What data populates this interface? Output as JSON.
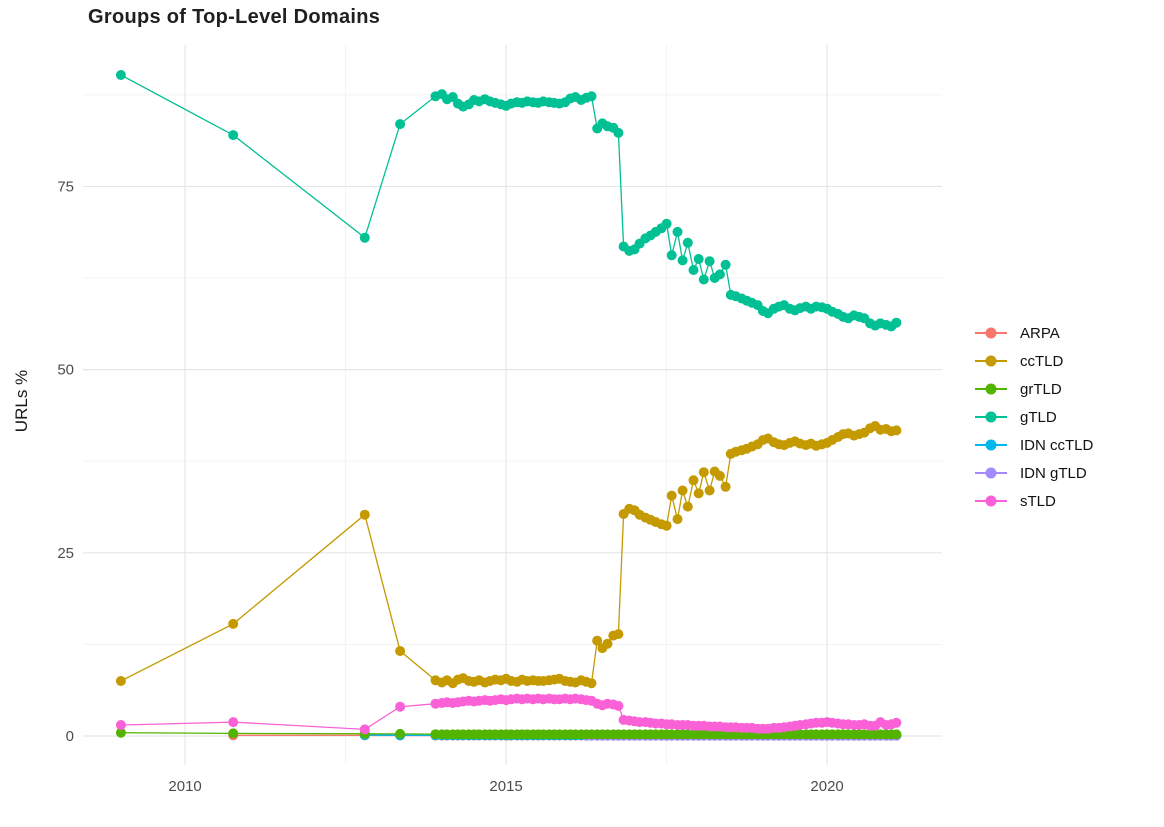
{
  "title": "Groups of Top-Level Domains",
  "axes": {
    "y_label": "URLs %",
    "y_ticks": [
      "0",
      "25",
      "50",
      "75"
    ],
    "y_tick_values": [
      0,
      25,
      50,
      75
    ],
    "y_minor_values": [
      12.5,
      37.5,
      62.5,
      87.5
    ],
    "x_ticks": [
      "2010",
      "2015",
      "2020"
    ],
    "x_tick_values": [
      2010,
      2015,
      2020
    ],
    "x_minor_values": [
      2012.5,
      2017.5
    ],
    "x_range": [
      2008.41,
      2021.79
    ],
    "y_range": [
      -3.96,
      94.3
    ]
  },
  "style": {
    "background": "#ffffff",
    "grid_major": "#e6e6e6",
    "grid_minor": "#f3f3f3",
    "tick_label_color": "#4d4d4d",
    "point_radius": 5,
    "line_width": 1.3
  },
  "legend": {
    "position": "right",
    "items": [
      {
        "label": "ARPA",
        "color": "#F8766D"
      },
      {
        "label": "ccTLD",
        "color": "#C49A00"
      },
      {
        "label": "grTLD",
        "color": "#53B400"
      },
      {
        "label": "gTLD",
        "color": "#00C094"
      },
      {
        "label": "IDN ccTLD",
        "color": "#00B6EB"
      },
      {
        "label": "IDN gTLD",
        "color": "#A58AFF"
      },
      {
        "label": "sTLD",
        "color": "#FB61D7"
      }
    ]
  },
  "chart_data": {
    "type": "line",
    "title": "Groups of Top-Level Domains",
    "xlabel": "",
    "ylabel": "URLs %",
    "ylim": [
      0,
      94
    ],
    "grid": true,
    "legend_position": "right",
    "x_dense": [
      2014,
      2014.08,
      2014.17,
      2014.25,
      2014.33,
      2014.42,
      2014.5,
      2014.58,
      2014.67,
      2014.75,
      2014.83,
      2014.92,
      2015,
      2015.08,
      2015.17,
      2015.25,
      2015.33,
      2015.42,
      2015.5,
      2015.58,
      2015.67,
      2015.75,
      2015.83,
      2015.92,
      2016,
      2016.08,
      2016.17,
      2016.25,
      2016.33,
      2016.42,
      2016.5,
      2016.58,
      2016.67,
      2016.75,
      2016.83,
      2016.92,
      2017,
      2017.08,
      2017.17,
      2017.25,
      2017.33,
      2017.42,
      2017.5,
      2017.58,
      2017.67,
      2017.75,
      2017.83,
      2017.92,
      2018,
      2018.08,
      2018.17,
      2018.25,
      2018.33,
      2018.42,
      2018.5,
      2018.58,
      2018.67,
      2018.75,
      2018.83,
      2018.92,
      2019,
      2019.08,
      2019.17,
      2019.25,
      2019.33,
      2019.42,
      2019.5,
      2019.58,
      2019.67,
      2019.75,
      2019.83,
      2019.92,
      2020,
      2020.08,
      2020.17,
      2020.25,
      2020.33,
      2020.42,
      2020.5,
      2020.58,
      2020.67,
      2020.75,
      2020.83,
      2020.92,
      2021,
      2021.08
    ],
    "series": [
      {
        "name": "ARPA",
        "color": "#F8766D",
        "dense_offset": 0,
        "y_const": 0.05,
        "x_extra": [
          2010.75,
          2012.8,
          2013.35,
          2013.9
        ],
        "y_extra": [
          0.1,
          0.08,
          0.06,
          0.05
        ]
      },
      {
        "name": "IDN ccTLD",
        "color": "#00B6EB",
        "dense_offset": 0,
        "y_const": 0.1,
        "x_extra": [
          2012.8,
          2013.35,
          2013.9
        ],
        "y_extra": [
          0.12,
          0.1,
          0.1
        ]
      },
      {
        "name": "IDN gTLD",
        "color": "#A58AFF",
        "dense_offset": 27,
        "y_const": 0.04,
        "x_extra": [],
        "y_extra": []
      },
      {
        "name": "grTLD",
        "color": "#53B400",
        "dense_offset": 0,
        "y_const": 0.22,
        "x_extra": [
          2009,
          2010.75,
          2012.8,
          2013.35,
          2013.9
        ],
        "y_extra": [
          0.45,
          0.35,
          0.3,
          0.28,
          0.25
        ]
      },
      {
        "name": "ccTLD",
        "color": "#C49A00",
        "dense_offset": 0,
        "x_extra": [
          2009,
          2010.75,
          2012.8,
          2013.35,
          2013.9
        ],
        "y_extra": [
          7.5,
          15.3,
          30.2,
          11.6,
          7.6
        ],
        "y_dense": [
          7.3,
          7.6,
          7.2,
          7.7,
          7.9,
          7.5,
          7.4,
          7.6,
          7.3,
          7.5,
          7.7,
          7.6,
          7.8,
          7.5,
          7.4,
          7.7,
          7.5,
          7.6,
          7.5,
          7.5,
          7.6,
          7.7,
          7.8,
          7.5,
          7.4,
          7.3,
          7.6,
          7.4,
          7.2,
          13.0,
          12.0,
          12.6,
          13.7,
          13.9,
          30.3,
          31.0,
          30.8,
          30.2,
          29.8,
          29.5,
          29.2,
          28.9,
          28.7,
          32.8,
          29.6,
          33.5,
          31.3,
          34.9,
          33.1,
          36.0,
          33.5,
          36.1,
          35.5,
          34.0,
          38.5,
          38.8,
          39.0,
          39.2,
          39.5,
          39.8,
          40.4,
          40.6,
          40.1,
          39.8,
          39.7,
          40.0,
          40.2,
          39.9,
          39.7,
          39.9,
          39.6,
          39.8,
          40.0,
          40.4,
          40.8,
          41.2,
          41.3,
          41.0,
          41.2,
          41.4,
          42.0,
          42.3,
          41.8,
          41.9,
          41.6,
          41.7
        ]
      },
      {
        "name": "gTLD",
        "color": "#00C094",
        "dense_offset": 0,
        "x_extra": [
          2009,
          2010.75,
          2012.8,
          2013.35,
          2013.9
        ],
        "y_extra": [
          90.2,
          82.0,
          68.0,
          83.5,
          87.3
        ],
        "y_dense": [
          87.6,
          86.9,
          87.2,
          86.3,
          85.9,
          86.2,
          86.8,
          86.6,
          86.9,
          86.6,
          86.4,
          86.2,
          86.0,
          86.3,
          86.5,
          86.4,
          86.6,
          86.5,
          86.4,
          86.6,
          86.5,
          86.4,
          86.3,
          86.5,
          87.0,
          87.2,
          86.8,
          87.1,
          87.3,
          82.9,
          83.6,
          83.2,
          83.0,
          82.3,
          66.8,
          66.2,
          66.4,
          67.2,
          67.9,
          68.3,
          68.8,
          69.3,
          69.9,
          65.6,
          68.8,
          64.9,
          67.3,
          63.6,
          65.1,
          62.3,
          64.8,
          62.5,
          63.0,
          64.3,
          60.2,
          60.0,
          59.7,
          59.4,
          59.1,
          58.8,
          58.0,
          57.7,
          58.3,
          58.6,
          58.8,
          58.3,
          58.1,
          58.4,
          58.6,
          58.3,
          58.6,
          58.5,
          58.3,
          57.9,
          57.6,
          57.2,
          57.0,
          57.4,
          57.2,
          57.0,
          56.3,
          56.0,
          56.3,
          56.1,
          55.9,
          56.4
        ]
      },
      {
        "name": "sTLD",
        "color": "#FB61D7",
        "dense_offset": 0,
        "x_extra": [
          2009,
          2010.75,
          2012.8,
          2013.35,
          2013.9
        ],
        "y_extra": [
          1.5,
          1.9,
          0.9,
          4.0,
          4.4
        ],
        "y_dense": [
          4.5,
          4.6,
          4.5,
          4.6,
          4.7,
          4.8,
          4.7,
          4.8,
          4.9,
          4.8,
          4.9,
          5.0,
          4.9,
          5.0,
          5.1,
          5.0,
          5.1,
          5.0,
          5.1,
          5.0,
          5.1,
          5.0,
          5.0,
          5.1,
          5.0,
          5.1,
          5.0,
          4.9,
          4.8,
          4.4,
          4.2,
          4.4,
          4.3,
          4.1,
          2.2,
          2.1,
          2.0,
          1.9,
          1.9,
          1.8,
          1.7,
          1.7,
          1.6,
          1.6,
          1.5,
          1.5,
          1.5,
          1.4,
          1.4,
          1.4,
          1.3,
          1.3,
          1.3,
          1.2,
          1.2,
          1.2,
          1.1,
          1.1,
          1.1,
          1.0,
          1.0,
          1.0,
          1.1,
          1.1,
          1.2,
          1.3,
          1.4,
          1.5,
          1.6,
          1.7,
          1.8,
          1.8,
          1.9,
          1.8,
          1.7,
          1.6,
          1.6,
          1.5,
          1.5,
          1.6,
          1.4,
          1.4,
          1.9,
          1.5,
          1.6,
          1.8
        ]
      }
    ]
  }
}
